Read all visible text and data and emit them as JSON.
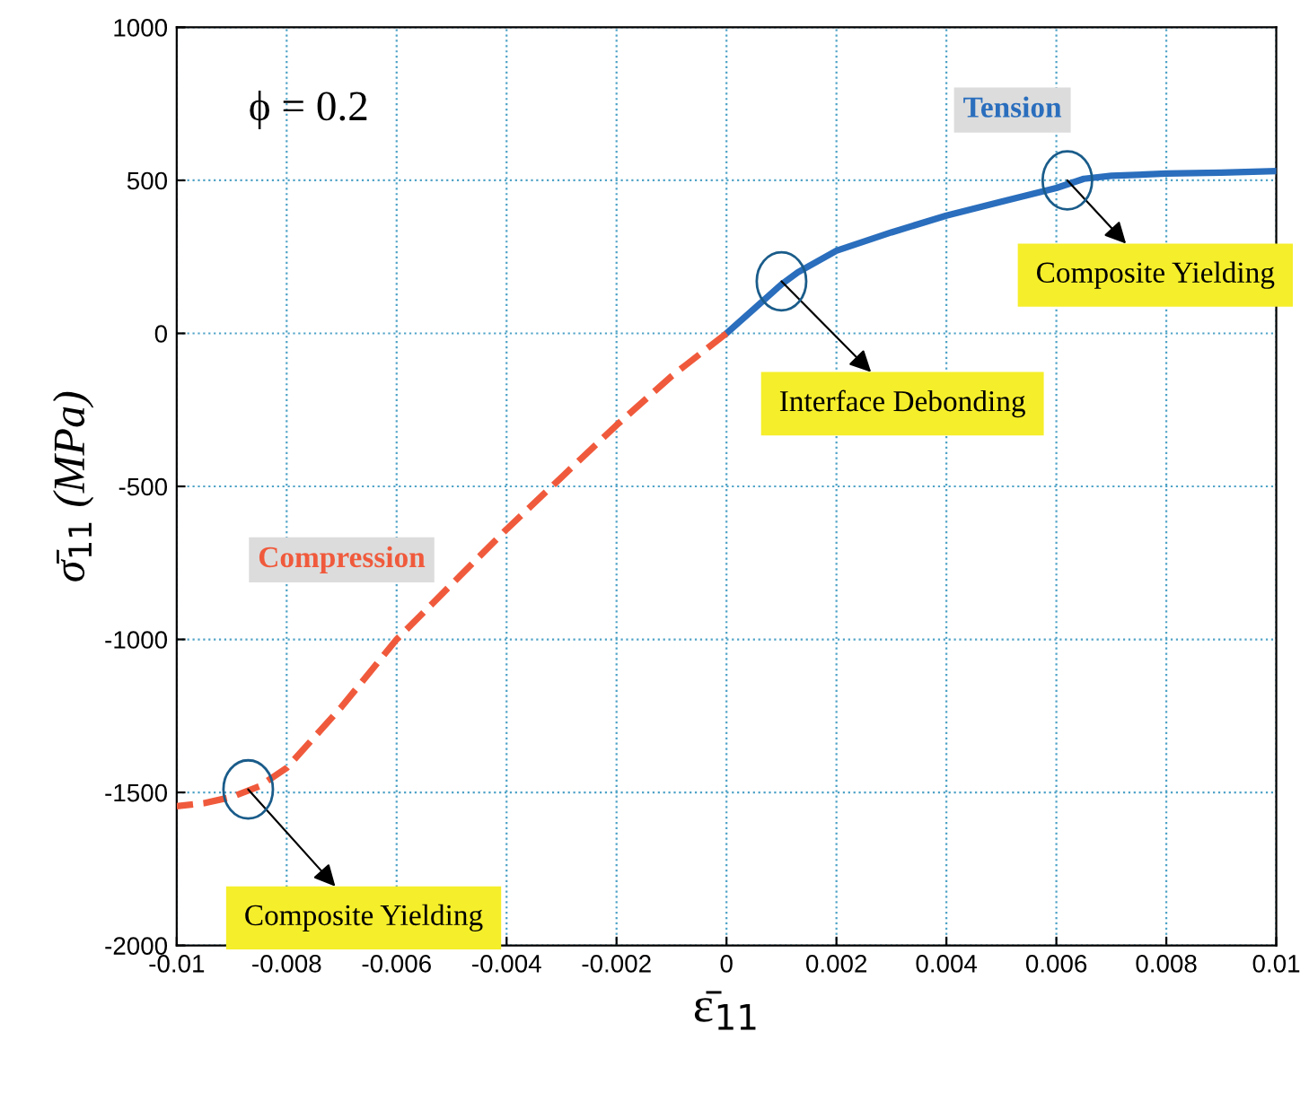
{
  "chart_data": {
    "type": "line",
    "xlabel": "ε̄$_{11}$",
    "ylabel": "σ̄$_{11}$ (MPa)",
    "xlim": [
      -0.01,
      0.01
    ],
    "ylim": [
      -2000,
      1000
    ],
    "xticks": [
      -0.01,
      -0.008,
      -0.006,
      -0.004,
      -0.002,
      0,
      0.002,
      0.004,
      0.006,
      0.008,
      0.01
    ],
    "yticks": [
      -2000,
      -1500,
      -1000,
      -500,
      0,
      500,
      1000
    ],
    "grid": true,
    "legend": false,
    "marker": "none",
    "series": [
      {
        "name": "Tension",
        "color": "#2a6ebd",
        "line_style": "solid",
        "x": [
          0,
          0.0005,
          0.001,
          0.0013,
          0.002,
          0.003,
          0.004,
          0.005,
          0.006,
          0.0065,
          0.007,
          0.008,
          0.009,
          0.01
        ],
        "values": [
          0,
          80,
          160,
          200,
          270,
          330,
          385,
          430,
          475,
          505,
          515,
          522,
          525,
          530
        ]
      },
      {
        "name": "Compression",
        "color": "#f05a3c",
        "line_style": "dashed",
        "x": [
          0,
          -0.001,
          -0.002,
          -0.003,
          -0.004,
          -0.005,
          -0.006,
          -0.007,
          -0.008,
          -0.0085,
          -0.009,
          -0.0095,
          -0.01
        ],
        "values": [
          0,
          -140,
          -300,
          -470,
          -640,
          -820,
          -1000,
          -1220,
          -1420,
          -1480,
          -1515,
          -1535,
          -1545
        ]
      }
    ],
    "annotations": [
      "ϕ = 0.2",
      {
        "text": "Interface Debonding",
        "x": 0.001,
        "y": 170
      },
      {
        "text": "Composite Yielding",
        "x": 0.0062,
        "y": 500
      },
      {
        "text": "Composite Yielding",
        "x": -0.0087,
        "y": -1490
      }
    ]
  }
}
